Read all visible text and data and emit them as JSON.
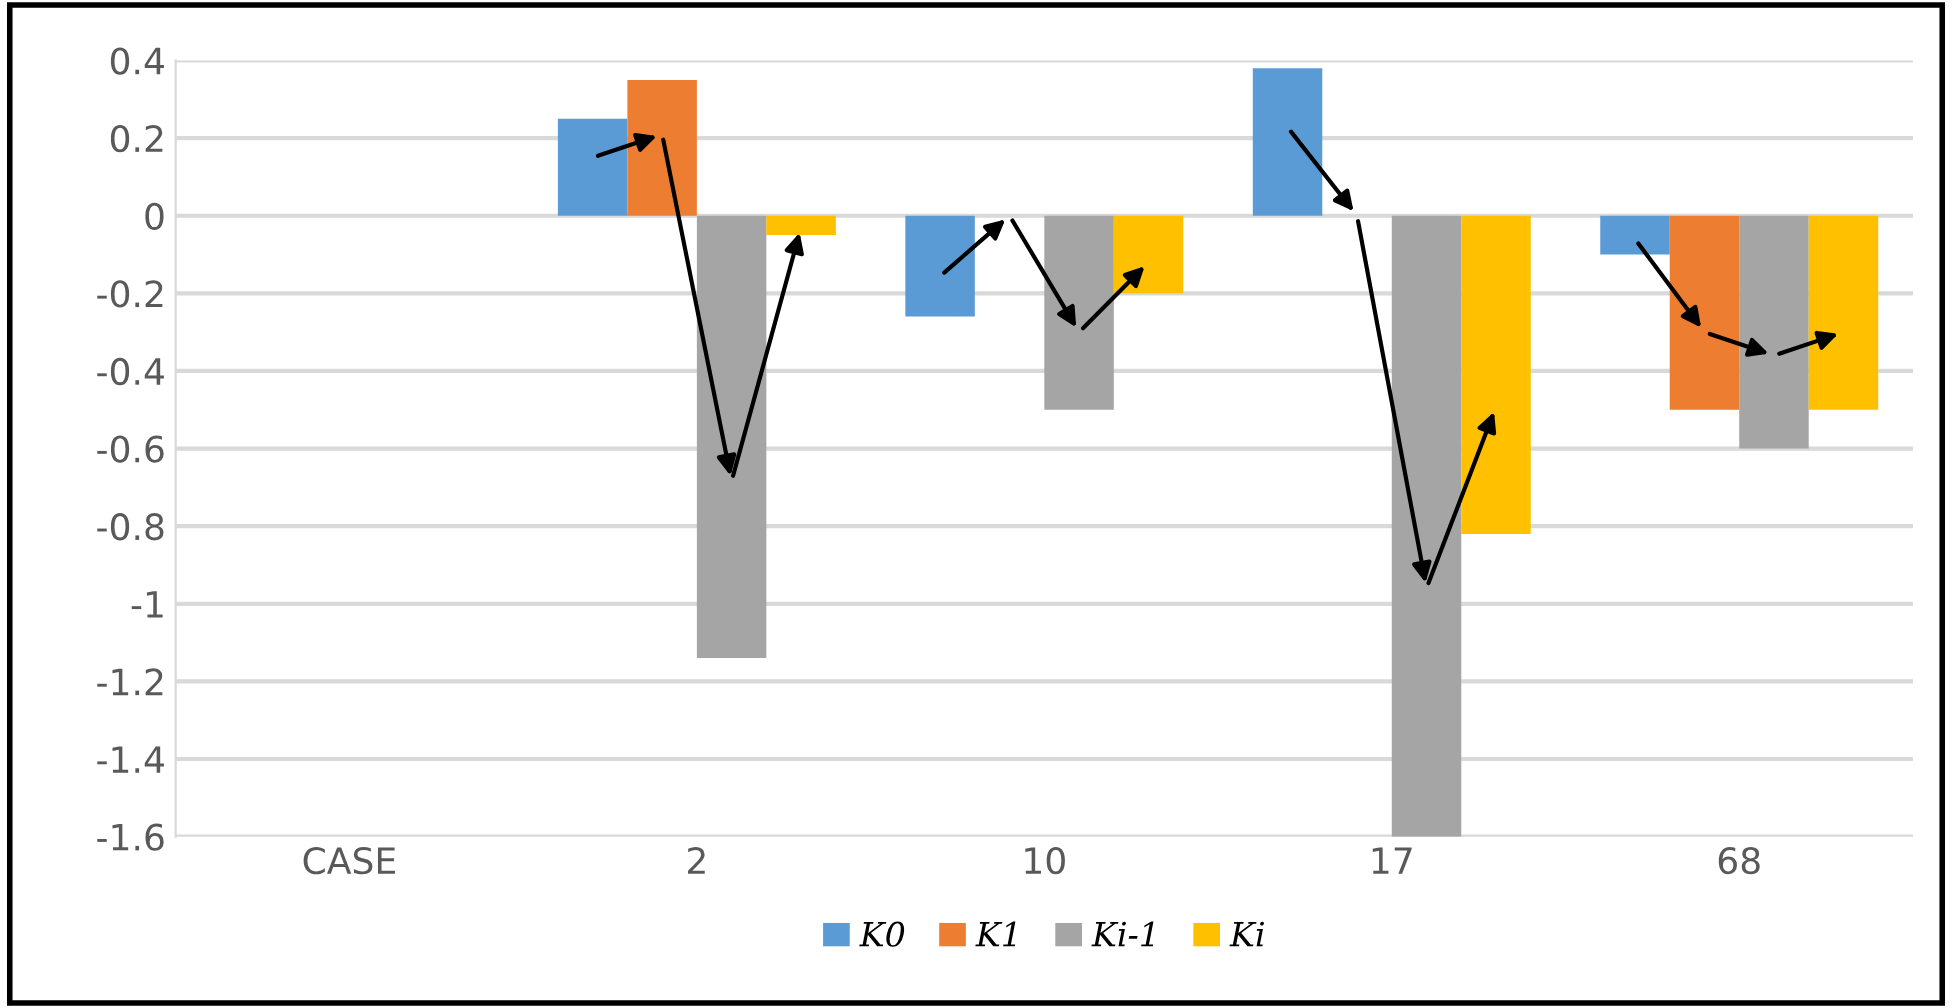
{
  "chart_data": {
    "type": "bar",
    "categories": [
      "CASE",
      "2",
      "10",
      "17",
      "68"
    ],
    "series": [
      {
        "name": "K0",
        "color": "#5b9bd5",
        "values": [
          null,
          0.25,
          -0.26,
          0.38,
          -0.1
        ]
      },
      {
        "name": "K1",
        "color": "#ed7d31",
        "values": [
          null,
          0.35,
          0,
          0,
          -0.5
        ]
      },
      {
        "name": "Ki-1",
        "color": "#a5a5a5",
        "values": [
          null,
          -1.14,
          -0.5,
          -1.6,
          -0.6
        ]
      },
      {
        "name": "Ki",
        "color": "#ffc000",
        "values": [
          null,
          -0.05,
          -0.2,
          -0.82,
          -0.5
        ]
      }
    ],
    "ylim": [
      -1.6,
      0.4
    ],
    "yticks": [
      0.4,
      0.2,
      0,
      -0.2,
      -0.4,
      -0.6,
      -0.8,
      -1,
      -1.2,
      -1.4,
      -1.6
    ],
    "grid": "y",
    "legend": "bottom"
  }
}
